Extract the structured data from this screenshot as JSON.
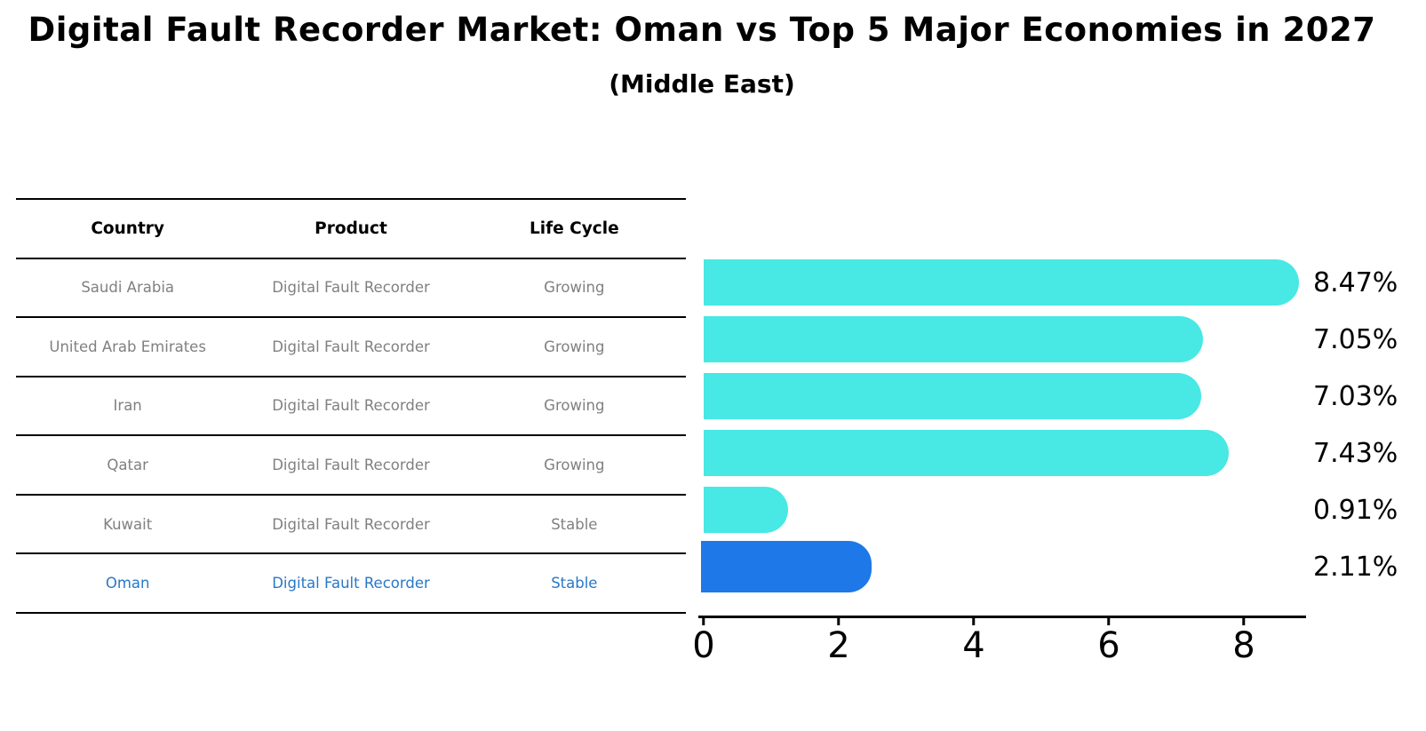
{
  "title": "Digital Fault Recorder Market: Oman vs Top 5 Major Economies in 2027",
  "subtitle": "(Middle East)",
  "table": {
    "headers": [
      "Country",
      "Product",
      "Life Cycle"
    ],
    "rows": [
      {
        "country": "Saudi Arabia",
        "product": "Digital Fault Recorder",
        "life_cycle": "Growing"
      },
      {
        "country": "United Arab Emirates",
        "product": "Digital Fault Recorder",
        "life_cycle": "Growing"
      },
      {
        "country": "Iran",
        "product": "Digital Fault Recorder",
        "life_cycle": "Growing"
      },
      {
        "country": "Qatar",
        "product": "Digital Fault Recorder",
        "life_cycle": "Growing"
      },
      {
        "country": "Kuwait",
        "product": "Digital Fault Recorder",
        "life_cycle": "Stable"
      },
      {
        "country": "Oman",
        "product": "Digital Fault Recorder",
        "life_cycle": "Stable"
      }
    ],
    "highlight_row_index": 5
  },
  "chart_data": {
    "type": "bar",
    "orientation": "horizontal",
    "title": "Digital Fault Recorder Market: Oman vs Top 5 Major Economies in 2027",
    "subtitle": "(Middle East)",
    "categories": [
      "Saudi Arabia",
      "United Arab Emirates",
      "Iran",
      "Qatar",
      "Kuwait",
      "Oman"
    ],
    "values": [
      8.47,
      7.05,
      7.03,
      7.43,
      0.91,
      2.11
    ],
    "value_labels": [
      "8.47%",
      "7.05%",
      "7.03%",
      "7.43%",
      "0.91%",
      "2.11%"
    ],
    "unit": "%",
    "xlabel": "",
    "ylabel": "",
    "xlim": [
      0,
      9
    ],
    "xticks": [
      0,
      2,
      4,
      6,
      8
    ],
    "grid": false,
    "legend": false,
    "highlight_index": 5,
    "colors": {
      "bar": "#48E8E4",
      "highlight_bar": "#1E78E8",
      "highlight_text": "#2878C8",
      "table_text": "#808080",
      "header_text": "#000000",
      "axis": "#000000"
    }
  }
}
